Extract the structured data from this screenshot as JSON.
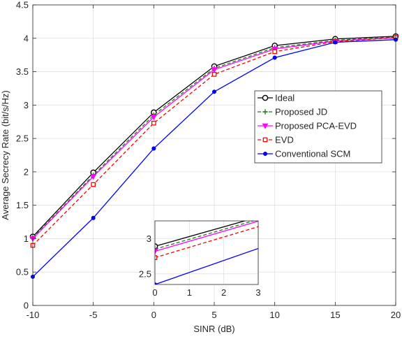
{
  "chart_data": {
    "type": "line",
    "xlabel": "SINR (dB)",
    "ylabel": "Average Secrecy Rate (bit/s/Hz)",
    "xlim": [
      -10,
      20
    ],
    "ylim": [
      0,
      4.5
    ],
    "xticks": [
      -10,
      -5,
      0,
      5,
      10,
      15,
      20
    ],
    "yticks": [
      0,
      0.5,
      1,
      1.5,
      2,
      2.5,
      3,
      3.5,
      4,
      4.5
    ],
    "grid": true,
    "legend_position": "center-right",
    "x": [
      -10,
      -5,
      0,
      5,
      10,
      15,
      20
    ],
    "series": [
      {
        "name": "Ideal",
        "color": "#000000",
        "marker": "circle",
        "dash": "solid",
        "values": [
          1.03,
          1.99,
          2.89,
          3.58,
          3.89,
          3.99,
          4.03
        ]
      },
      {
        "name": "Proposed JD",
        "color": "#1a7a1a",
        "marker": "plus",
        "dash": "dashed",
        "values": [
          1.01,
          1.95,
          2.85,
          3.55,
          3.86,
          3.97,
          4.02
        ]
      },
      {
        "name": "Proposed PCA-EVD",
        "color": "#ff00ff",
        "marker": "triangle-down",
        "dash": "solid",
        "values": [
          1.0,
          1.93,
          2.82,
          3.53,
          3.84,
          3.96,
          4.01
        ]
      },
      {
        "name": "EVD",
        "color": "#ff0000",
        "marker": "square",
        "dash": "dashed",
        "values": [
          0.9,
          1.81,
          2.73,
          3.46,
          3.8,
          3.95,
          4.01
        ]
      },
      {
        "name": "Conventional SCM",
        "color": "#0000ff",
        "marker": "dot",
        "dash": "solid",
        "values": [
          0.43,
          1.31,
          2.35,
          3.2,
          3.71,
          3.94,
          3.98
        ]
      }
    ],
    "inset": {
      "xlim": [
        0,
        3
      ],
      "ylim": [
        2.35,
        3.25
      ],
      "xticks": [
        0,
        1,
        2,
        3
      ],
      "yticks": [
        2.5,
        3
      ]
    }
  }
}
